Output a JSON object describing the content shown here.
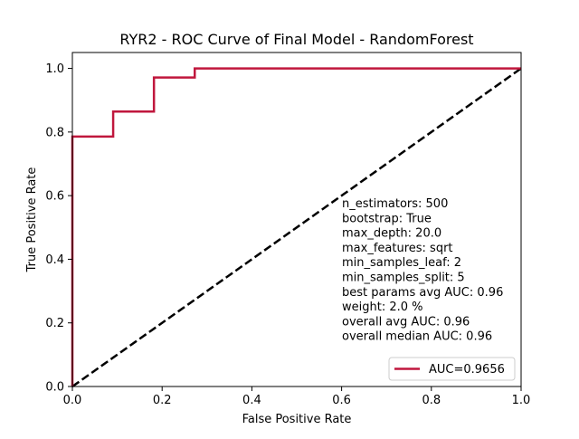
{
  "chart_data": {
    "type": "line",
    "title": "RYR2 - ROC Curve of Final Model - RandomForest",
    "xlabel": "False Positive Rate",
    "ylabel": "True Positive Rate",
    "xlim": [
      0.0,
      1.0
    ],
    "ylim": [
      0.0,
      1.05
    ],
    "xticks": [
      "0.0",
      "0.2",
      "0.4",
      "0.6",
      "0.8",
      "1.0"
    ],
    "yticks": [
      "0.0",
      "0.2",
      "0.4",
      "0.6",
      "0.8",
      "1.0"
    ],
    "grid": false,
    "legend_position": "lower-right",
    "series": [
      {
        "name": "AUC=0.9656",
        "color": "#C0173D",
        "x": [
          0.0,
          0.0,
          0.0909,
          0.0909,
          0.1818,
          0.1818,
          0.2727,
          0.2727,
          1.0
        ],
        "y": [
          0.0,
          0.7857,
          0.7857,
          0.8643,
          0.8643,
          0.9714,
          0.9714,
          1.0,
          1.0
        ]
      }
    ],
    "reference_line": {
      "color": "#000000",
      "style": "dashed",
      "x": [
        0.0,
        1.0
      ],
      "y": [
        0.0,
        1.0
      ]
    },
    "annotation_lines": [
      "n_estimators: 500",
      "bootstrap: True",
      "max_depth: 20.0",
      "max_features: sqrt",
      "min_samples_leaf: 2",
      "min_samples_split: 5",
      "best params avg AUC: 0.96",
      "weight: 2.0 %",
      "overall avg AUC: 0.96",
      "overall median AUC: 0.96"
    ]
  }
}
